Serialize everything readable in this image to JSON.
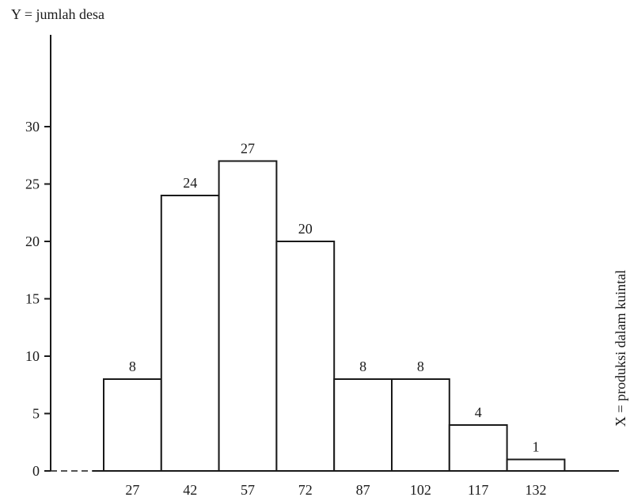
{
  "chart_data": {
    "type": "bar",
    "title": "",
    "ylabel": "Y = jumlah desa",
    "xlabel": "X = produksi dalam kuintal",
    "categories": [
      "27",
      "42",
      "57",
      "72",
      "87",
      "102",
      "117",
      "132"
    ],
    "values": [
      8,
      24,
      27,
      20,
      8,
      8,
      4,
      1
    ],
    "data_labels": [
      "8",
      "24",
      "27",
      "20",
      "8",
      "8",
      "4",
      "1"
    ],
    "y_ticks": [
      "0",
      "5",
      "10",
      "15",
      "20",
      "25",
      "30"
    ],
    "ylim": [
      0,
      30
    ],
    "grid": false,
    "legend": "none",
    "bars_adjacent": true,
    "colors": {
      "ink": "#1a1a1a",
      "bar_fill": "#ffffff",
      "background": "#ffffff"
    }
  }
}
